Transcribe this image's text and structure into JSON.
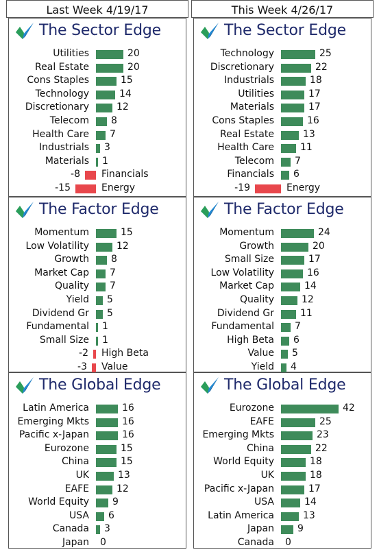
{
  "columns": [
    {
      "title": "Last Week 4/19/17",
      "panels": [
        {
          "title": "The Sector Edge",
          "chart_data": {
            "type": "bar",
            "categories": [
              "Utilities",
              "Real Estate",
              "Cons Staples",
              "Technology",
              "Discretionary",
              "Telecom",
              "Health Care",
              "Industrials",
              "Materials",
              "Financials",
              "Energy"
            ],
            "values": [
              20,
              20,
              15,
              14,
              12,
              8,
              7,
              3,
              1,
              -8,
              -15
            ]
          }
        },
        {
          "title": "The Factor Edge",
          "chart_data": {
            "type": "bar",
            "categories": [
              "Momentum",
              "Low Volatility",
              "Growth",
              "Market Cap",
              "Quality",
              "Yield",
              "Dividend Gr",
              "Fundamental",
              "Small Size",
              "High Beta",
              "Value"
            ],
            "values": [
              15,
              12,
              8,
              7,
              7,
              5,
              5,
              1,
              1,
              -2,
              -3
            ]
          }
        },
        {
          "title": "The Global Edge",
          "chart_data": {
            "type": "bar",
            "categories": [
              "Latin America",
              "Emerging Mkts",
              "Pacific x-Japan",
              "Eurozone",
              "China",
              "UK",
              "EAFE",
              "World Equity",
              "USA",
              "Canada",
              "Japan"
            ],
            "values": [
              16,
              16,
              16,
              15,
              15,
              13,
              12,
              9,
              6,
              3,
              0
            ]
          }
        }
      ]
    },
    {
      "title": "This Week 4/26/17",
      "panels": [
        {
          "title": "The Sector Edge",
          "chart_data": {
            "type": "bar",
            "categories": [
              "Technology",
              "Discretionary",
              "Industrials",
              "Utilities",
              "Materials",
              "Cons Staples",
              "Real Estate",
              "Health Care",
              "Telecom",
              "Financials",
              "Energy"
            ],
            "values": [
              25,
              22,
              18,
              17,
              17,
              16,
              13,
              11,
              7,
              6,
              -19
            ]
          }
        },
        {
          "title": "The Factor Edge",
          "chart_data": {
            "type": "bar",
            "categories": [
              "Momentum",
              "Growth",
              "Small Size",
              "Low Volatility",
              "Market Cap",
              "Quality",
              "Dividend Gr",
              "Fundamental",
              "High Beta",
              "Value",
              "Yield"
            ],
            "values": [
              24,
              20,
              17,
              16,
              14,
              12,
              11,
              7,
              6,
              5,
              4
            ]
          }
        },
        {
          "title": "The Global Edge",
          "chart_data": {
            "type": "bar",
            "categories": [
              "Eurozone",
              "EAFE",
              "Emerging Mkts",
              "China",
              "World Equity",
              "UK",
              "Pacific x-Japan",
              "USA",
              "Latin America",
              "Japan",
              "Canada"
            ],
            "values": [
              42,
              25,
              23,
              22,
              18,
              18,
              17,
              14,
              13,
              9,
              0
            ]
          }
        }
      ]
    }
  ],
  "colors": {
    "positive": "#3e8b5a",
    "negative": "#e8474c",
    "title": "#1f2a6b"
  },
  "icon": "checkmark-logo-icon"
}
